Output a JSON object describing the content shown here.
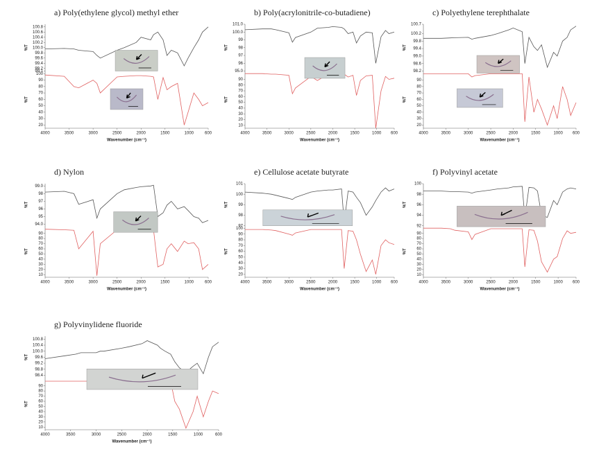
{
  "chart_data": [
    {
      "type": "line",
      "title": "a) Poly(ethylene glycol) methyl ether",
      "xlabel": "Wavenumber (cm⁻¹)",
      "ylabel": "%T",
      "y2label": "%T",
      "x": [
        4000,
        3600,
        3400,
        3300,
        3000,
        2920,
        2850,
        2500,
        2350,
        2100,
        2000,
        1800,
        1740,
        1650,
        1540,
        1460,
        1370,
        1240,
        1100,
        1020,
        900,
        800,
        720,
        600
      ],
      "xlim": [
        4000,
        600
      ],
      "xticks": [
        4000,
        3500,
        3000,
        2500,
        2000,
        1500,
        1000,
        600
      ],
      "ylim": [
        99.1,
        100.9
      ],
      "yticks": [
        99.1,
        99.2,
        99.4,
        99.6,
        99.8,
        {
          "value": 100,
          "label": "100.0"
        },
        100.2,
        100.4,
        100.6,
        100.8
      ],
      "y2lim": [
        15,
        102
      ],
      "y2ticks": [
        20,
        30,
        40,
        50,
        60,
        70,
        80,
        90,
        100
      ],
      "series": [
        {
          "color": "#555555",
          "values": [
            99.95,
            99.97,
            99.95,
            99.9,
            99.85,
            99.7,
            99.6,
            99.9,
            100.0,
            100.2,
            100.4,
            100.3,
            100.5,
            100.6,
            100.3,
            99.7,
            99.9,
            99.8,
            99.3,
            99.6,
            100.0,
            100.3,
            100.6,
            100.8
          ]
        },
        {
          "color": "#e06060",
          "axis": "y2",
          "values": [
            98,
            96,
            80,
            78,
            90,
            85,
            70,
            95,
            96,
            97,
            97,
            96,
            95,
            60,
            94,
            75,
            80,
            85,
            20,
            40,
            70,
            60,
            50,
            55
          ]
        }
      ]
    },
    {
      "type": "line",
      "title": "b) Poly(acrylonitrile-co-butadiene)",
      "xlabel": "Wavenumber (cm⁻¹)",
      "ylabel": "%T",
      "y2label": "%T",
      "x": [
        4000,
        3600,
        3400,
        3300,
        3000,
        2920,
        2850,
        2500,
        2350,
        2100,
        2000,
        1800,
        1740,
        1650,
        1540,
        1460,
        1370,
        1240,
        1100,
        1020,
        900,
        800,
        720,
        600
      ],
      "xlim": [
        4000,
        600
      ],
      "xticks": [
        4000,
        3500,
        3000,
        2500,
        2000,
        1500,
        1000,
        600
      ],
      "ylim": [
        95,
        101
      ],
      "yticks": [
        {
          "value": 95,
          "label": "95.0"
        },
        96,
        97,
        98,
        99,
        {
          "value": 100,
          "label": "100.0"
        },
        {
          "value": 101,
          "label": "101.0"
        }
      ],
      "y2lim": [
        5,
        102
      ],
      "y2ticks": [
        10,
        20,
        30,
        40,
        50,
        60,
        70,
        80,
        90
      ],
      "series": [
        {
          "color": "#555555",
          "values": [
            100.3,
            100.4,
            100.4,
            100.3,
            99.9,
            98.7,
            99.3,
            100.0,
            100.5,
            100.6,
            100.7,
            100.6,
            100.4,
            99.8,
            100.0,
            98.6,
            99.5,
            100.0,
            99.9,
            96.0,
            99.4,
            100.2,
            99.8,
            100.0
          ]
        },
        {
          "color": "#e06060",
          "axis": "y2",
          "values": [
            100,
            100,
            99,
            99,
            97,
            65,
            75,
            95,
            88,
            99,
            99,
            99,
            99,
            94,
            97,
            62,
            88,
            96,
            97,
            5,
            70,
            95,
            90,
            92
          ]
        }
      ]
    },
    {
      "type": "line",
      "title": "c) Polyethylene terephthalate",
      "xlabel": "Wavenumber (cm⁻¹)",
      "ylabel": "%T",
      "y2label": "%T",
      "x": [
        4000,
        3600,
        3400,
        3300,
        3000,
        2920,
        2850,
        2500,
        2350,
        2100,
        2000,
        1800,
        1740,
        1650,
        1540,
        1460,
        1370,
        1240,
        1100,
        1020,
        900,
        800,
        720,
        600
      ],
      "xlim": [
        4000,
        600
      ],
      "xticks": [
        4000,
        3500,
        3000,
        2500,
        2000,
        1500,
        1000,
        600
      ],
      "ylim": [
        98.2,
        100.7
      ],
      "yticks": [
        98.2,
        98.6,
        {
          "value": 99,
          "label": "99.0"
        },
        99.4,
        99.8,
        100.2,
        100.7
      ],
      "y2lim": [
        15,
        102
      ],
      "y2ticks": [
        20,
        30,
        40,
        50,
        60,
        70,
        80,
        90
      ],
      "series": [
        {
          "color": "#555555",
          "values": [
            99.95,
            99.95,
            99.97,
            99.98,
            100.0,
            99.9,
            99.95,
            100.1,
            100.2,
            100.4,
            100.5,
            100.3,
            98.6,
            100.0,
            99.5,
            99.3,
            99.6,
            98.4,
            99.2,
            99.0,
            99.8,
            100.0,
            100.4,
            100.6
          ]
        },
        {
          "color": "#e06060",
          "axis": "y2",
          "values": [
            100,
            100,
            100,
            100,
            100,
            95,
            97,
            100,
            100,
            100,
            100,
            100,
            25,
            95,
            40,
            60,
            45,
            20,
            50,
            30,
            80,
            60,
            35,
            55
          ]
        }
      ]
    },
    {
      "type": "line",
      "title": "d) Nylon",
      "xlabel": "Wavenumber (cm⁻¹)",
      "ylabel": "%T",
      "y2label": "%T",
      "x": [
        4000,
        3600,
        3400,
        3300,
        3000,
        2920,
        2850,
        2500,
        2350,
        2100,
        2000,
        1800,
        1740,
        1650,
        1540,
        1460,
        1370,
        1240,
        1100,
        1020,
        900,
        800,
        720,
        600
      ],
      "xlim": [
        4000,
        600
      ],
      "xticks": [
        4000,
        3500,
        3000,
        2500,
        2000,
        1500,
        1000,
        600
      ],
      "ylim": [
        93.8,
        99.3
      ],
      "yticks": [
        {
          "value": 94,
          "label": "94.0"
        },
        95,
        96,
        97,
        98,
        {
          "value": 99,
          "label": "99.0"
        }
      ],
      "y2lim": [
        5,
        102
      ],
      "y2ticks": [
        10,
        20,
        30,
        40,
        50,
        60,
        70,
        80,
        90
      ],
      "series": [
        {
          "color": "#555555",
          "values": [
            98.2,
            98.3,
            98.0,
            96.6,
            97.2,
            94.8,
            96.0,
            98.0,
            98.5,
            98.8,
            98.9,
            99.0,
            99.1,
            95.0,
            95.5,
            96.5,
            97.0,
            96.0,
            96.3,
            95.8,
            95.0,
            94.8,
            94.2,
            94.5
          ]
        },
        {
          "color": "#e06060",
          "axis": "y2",
          "values": [
            98,
            97,
            96,
            60,
            94,
            8,
            70,
            97,
            97,
            97,
            97,
            97,
            97,
            25,
            30,
            60,
            70,
            55,
            75,
            70,
            72,
            60,
            20,
            30
          ]
        }
      ]
    },
    {
      "type": "line",
      "title": "e) Cellulose acetate butyrate",
      "xlabel": "Wavenumber (cm⁻¹)",
      "ylabel": "%T",
      "y2label": "%T",
      "x": [
        4000,
        3600,
        3400,
        3300,
        3000,
        2920,
        2850,
        2500,
        2350,
        2100,
        2000,
        1800,
        1740,
        1650,
        1540,
        1460,
        1370,
        1240,
        1100,
        1020,
        900,
        800,
        720,
        600
      ],
      "xlim": [
        4000,
        600
      ],
      "xticks": [
        4000,
        3500,
        3000,
        2500,
        2000,
        1500,
        1000,
        600
      ],
      "ylim": [
        97,
        101
      ],
      "yticks": [
        97,
        98,
        99,
        100,
        101
      ],
      "y2lim": [
        15,
        102
      ],
      "y2ticks": [
        20,
        30,
        40,
        50,
        60,
        70,
        80,
        90,
        100
      ],
      "series": [
        {
          "color": "#555555",
          "values": [
            100.2,
            100.1,
            100.0,
            99.9,
            99.6,
            99.5,
            99.7,
            100.2,
            100.3,
            100.4,
            100.4,
            100.5,
            97.3,
            100.3,
            100.2,
            99.7,
            99.2,
            98.0,
            98.8,
            99.4,
            100.2,
            100.6,
            100.3,
            100.5
          ]
        },
        {
          "color": "#e06060",
          "axis": "y2",
          "values": [
            98,
            98,
            97,
            96,
            90,
            88,
            92,
            98,
            98,
            98,
            98,
            98,
            30,
            96,
            95,
            80,
            55,
            25,
            45,
            20,
            70,
            80,
            75,
            72
          ]
        }
      ]
    },
    {
      "type": "line",
      "title": "f) Polyvinyl acetate",
      "xlabel": "Wavenumber (cm⁻¹)",
      "ylabel": "%T",
      "y2label": "%T",
      "x": [
        4000,
        3600,
        3400,
        3300,
        3000,
        2920,
        2850,
        2500,
        2350,
        2100,
        2000,
        1800,
        1740,
        1650,
        1540,
        1460,
        1370,
        1240,
        1100,
        1020,
        900,
        800,
        720,
        600
      ],
      "xlim": [
        4000,
        600
      ],
      "xticks": [
        4000,
        3500,
        3000,
        2500,
        2000,
        1500,
        1000,
        600
      ],
      "ylim": [
        92,
        100
      ],
      "yticks": [
        92,
        94,
        96,
        98,
        100
      ],
      "y2lim": [
        5,
        102
      ],
      "y2ticks": [
        10,
        20,
        30,
        40,
        50,
        60,
        70,
        80,
        90
      ],
      "series": [
        {
          "color": "#555555",
          "values": [
            98.6,
            98.6,
            98.5,
            98.5,
            98.4,
            98.2,
            98.4,
            98.8,
            99.0,
            99.2,
            99.4,
            99.5,
            93.5,
            99.3,
            99.2,
            98.6,
            94.0,
            93.6,
            96.8,
            96.0,
            98.4,
            99.0,
            99.2,
            99.0
          ]
        },
        {
          "color": "#e06060",
          "axis": "y2",
          "values": [
            100,
            100,
            99,
            96,
            93,
            78,
            88,
            99,
            99,
            99,
            99,
            99,
            25,
            97,
            96,
            75,
            35,
            15,
            40,
            45,
            80,
            95,
            90,
            92
          ]
        }
      ]
    },
    {
      "type": "line",
      "title": "g) Polyvinylidene fluoride",
      "xlabel": "Wavenumber (cm⁻¹)",
      "ylabel": "%T",
      "y2label": "%T",
      "x": [
        4000,
        3600,
        3400,
        3300,
        3000,
        2920,
        2850,
        2500,
        2350,
        2100,
        2000,
        1800,
        1740,
        1650,
        1540,
        1460,
        1370,
        1240,
        1100,
        1020,
        900,
        800,
        720,
        600
      ],
      "xlim": [
        4000,
        600
      ],
      "xticks": [
        4000,
        3500,
        3000,
        2500,
        2000,
        1500,
        1000,
        600
      ],
      "ylim": [
        98.2,
        101
      ],
      "yticks": [
        98.4,
        98.8,
        99.2,
        99.6,
        {
          "value": 100,
          "label": "100.0"
        },
        100.4,
        100.8
      ],
      "y2lim": [
        5,
        102
      ],
      "y2ticks": [
        10,
        20,
        30,
        40,
        50,
        60,
        70,
        80,
        90
      ],
      "series": [
        {
          "color": "#555555",
          "values": [
            99.5,
            99.7,
            99.8,
            99.9,
            99.9,
            100.0,
            100.0,
            100.2,
            100.3,
            100.5,
            100.7,
            100.4,
            100.2,
            100.0,
            99.8,
            99.3,
            98.9,
            98.6,
            99.0,
            99.2,
            98.5,
            99.6,
            100.3,
            100.6
          ]
        },
        {
          "color": "#e06060",
          "axis": "y2",
          "values": [
            99,
            99,
            99,
            99,
            99,
            96,
            98,
            99,
            99,
            99,
            99,
            99,
            99,
            99,
            99,
            60,
            45,
            8,
            40,
            70,
            30,
            60,
            80,
            75
          ]
        }
      ]
    }
  ]
}
